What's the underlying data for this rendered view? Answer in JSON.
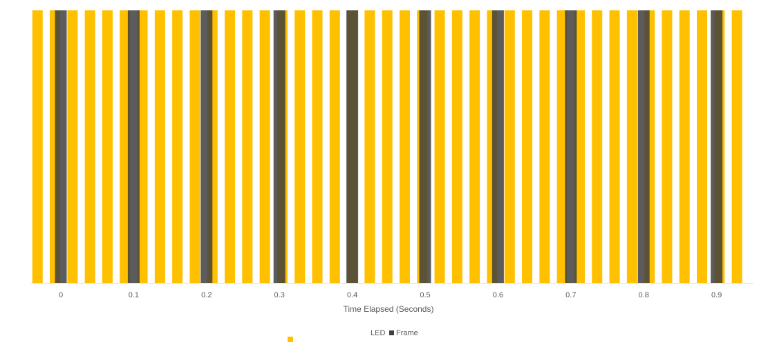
{
  "chart_data": {
    "type": "bar",
    "title": "",
    "xlabel": "Time Elapsed (Seconds)",
    "ylabel": "",
    "xlim": [
      -0.04,
      0.94
    ],
    "x_ticks": [
      "0",
      "0.1",
      "0.2",
      "0.3",
      "0.4",
      "0.5",
      "0.6",
      "0.7",
      "0.8",
      "0.9"
    ],
    "grid": false,
    "legend_position": "bottom",
    "series": [
      {
        "name": "LED",
        "color": "#FFC000",
        "value": 1,
        "x": [
          -0.032,
          -0.008,
          0.016,
          0.04,
          0.064,
          0.088,
          0.112,
          0.136,
          0.16,
          0.184,
          0.208,
          0.232,
          0.256,
          0.28,
          0.304,
          0.328,
          0.352,
          0.376,
          0.4,
          0.424,
          0.448,
          0.472,
          0.496,
          0.52,
          0.544,
          0.568,
          0.592,
          0.616,
          0.64,
          0.664,
          0.688,
          0.712,
          0.736,
          0.76,
          0.784,
          0.808,
          0.832,
          0.856,
          0.88,
          0.904,
          0.928
        ]
      },
      {
        "name": "Frame",
        "color": "#404040",
        "value": 1,
        "x": [
          0.0,
          0.1,
          0.2,
          0.3,
          0.4,
          0.5,
          0.6,
          0.7,
          0.8,
          0.9
        ]
      }
    ]
  }
}
